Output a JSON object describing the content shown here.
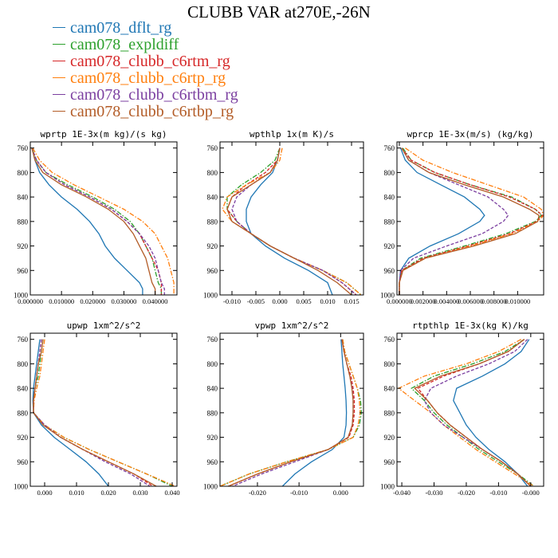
{
  "title": "CLUBB VAR at270E,-26N",
  "colors": {
    "series": [
      "#1f77b4",
      "#2ca02c",
      "#d62728",
      "#ff7f0e",
      "#7b3fa0",
      "#b35c27"
    ],
    "dash": [
      "solid",
      "dashdot",
      "dashed",
      "dashdot",
      "dashed",
      "solid"
    ]
  },
  "legend": [
    "cam078_dflt_rg",
    "cam078_expldiff",
    "cam078_clubb_c6rtm_rg",
    "cam078_clubb_c6rtp_rg",
    "cam078_clubb_c6rtbm_rg",
    "cam078_clubb_c6rtbp_rg"
  ],
  "chart_data": [
    {
      "type": "line",
      "title": "wprtp  1E-3x(m kg)/(s kg)",
      "ylim": [
        1000,
        750
      ],
      "xlim": [
        0.0,
        0.047
      ],
      "y_ticks": [
        "760",
        "800",
        "840",
        "880",
        "920",
        "960",
        "1000"
      ],
      "x_ticks": [
        "0.000000",
        "0.010000",
        "0.020000",
        "0.030000",
        "0.040000"
      ],
      "y": [
        760,
        780,
        800,
        820,
        840,
        860,
        880,
        900,
        920,
        940,
        960,
        980,
        990,
        1000
      ],
      "series": [
        {
          "values": [
            0.0005,
            0.0015,
            0.003,
            0.006,
            0.01,
            0.015,
            0.019,
            0.022,
            0.024,
            0.027,
            0.031,
            0.035,
            0.036,
            0.036
          ]
        },
        {
          "values": [
            0.0005,
            0.002,
            0.005,
            0.012,
            0.02,
            0.027,
            0.032,
            0.035,
            0.037,
            0.039,
            0.04,
            0.041,
            0.042,
            0.042
          ]
        },
        {
          "values": [
            0.0005,
            0.002,
            0.005,
            0.011,
            0.019,
            0.026,
            0.031,
            0.035,
            0.037,
            0.039,
            0.041,
            0.042,
            0.042,
            0.042
          ]
        },
        {
          "values": [
            0.0008,
            0.003,
            0.007,
            0.014,
            0.022,
            0.03,
            0.036,
            0.04,
            0.042,
            0.044,
            0.045,
            0.046,
            0.046,
            0.046
          ]
        },
        {
          "values": [
            0.0005,
            0.002,
            0.005,
            0.011,
            0.019,
            0.026,
            0.031,
            0.035,
            0.038,
            0.04,
            0.041,
            0.042,
            0.043,
            0.043
          ]
        },
        {
          "values": [
            0.0005,
            0.0015,
            0.004,
            0.01,
            0.018,
            0.025,
            0.03,
            0.033,
            0.035,
            0.037,
            0.038,
            0.039,
            0.04,
            0.04
          ]
        }
      ]
    },
    {
      "type": "line",
      "title": "wpthlp  1x(m K)/s",
      "ylim": [
        1000,
        750
      ],
      "xlim": [
        -0.0125,
        0.0175
      ],
      "y_ticks": [
        "760",
        "800",
        "840",
        "880",
        "920",
        "960",
        "1000"
      ],
      "x_ticks": [
        "-0.010",
        "-0.005",
        "0.000",
        "0.005",
        "0.010",
        "0.015"
      ],
      "y": [
        760,
        780,
        800,
        820,
        840,
        860,
        880,
        900,
        920,
        940,
        960,
        980,
        1000
      ],
      "series": [
        {
          "values": [
            0.0,
            -0.0005,
            -0.0015,
            -0.004,
            -0.006,
            -0.007,
            -0.007,
            -0.006,
            -0.003,
            0.001,
            0.006,
            0.01,
            0.011
          ]
        },
        {
          "values": [
            0.0,
            -0.001,
            -0.004,
            -0.008,
            -0.011,
            -0.011,
            -0.009,
            -0.006,
            -0.002,
            0.003,
            0.009,
            0.014,
            0.017
          ]
        },
        {
          "values": [
            0.0,
            -0.0005,
            -0.003,
            -0.007,
            -0.01,
            -0.011,
            -0.009,
            -0.006,
            -0.002,
            0.003,
            0.009,
            0.013,
            0.016
          ]
        },
        {
          "values": [
            0.0005,
            0.0,
            -0.002,
            -0.007,
            -0.011,
            -0.012,
            -0.01,
            -0.006,
            -0.002,
            0.003,
            0.009,
            0.014,
            0.017
          ]
        },
        {
          "values": [
            0.0,
            -0.0005,
            -0.002,
            -0.006,
            -0.009,
            -0.01,
            -0.009,
            -0.006,
            -0.002,
            0.003,
            0.009,
            0.013,
            0.016
          ]
        },
        {
          "values": [
            0.0,
            -0.0005,
            -0.002,
            -0.006,
            -0.01,
            -0.011,
            -0.01,
            -0.006,
            -0.002,
            0.003,
            0.008,
            0.012,
            0.015
          ]
        }
      ]
    },
    {
      "type": "line",
      "title": "wprcp  1E-3x(m/s) (kg/kg)",
      "ylim": [
        1000,
        750
      ],
      "xlim": [
        -0.0002,
        0.0122
      ],
      "y_ticks": [
        "760",
        "800",
        "840",
        "880",
        "920",
        "960",
        "1000"
      ],
      "x_ticks": [
        "0.000000",
        "0.002000",
        "0.004000",
        "0.006000",
        "0.008000",
        "0.010000"
      ],
      "y": [
        760,
        780,
        800,
        820,
        840,
        860,
        870,
        880,
        900,
        920,
        940,
        960,
        980,
        1000
      ],
      "series": [
        {
          "values": [
            0.0001,
            0.0005,
            0.0015,
            0.0035,
            0.0055,
            0.0068,
            0.0072,
            0.0068,
            0.005,
            0.0026,
            0.0008,
            0.0001,
            0.0,
            0.0
          ]
        },
        {
          "values": [
            0.0003,
            0.001,
            0.003,
            0.006,
            0.0095,
            0.0115,
            0.012,
            0.0115,
            0.009,
            0.0055,
            0.0018,
            0.0002,
            0.0,
            0.0
          ]
        },
        {
          "values": [
            0.0002,
            0.001,
            0.003,
            0.006,
            0.0093,
            0.0115,
            0.0121,
            0.0116,
            0.0093,
            0.0058,
            0.002,
            0.0002,
            0.0,
            0.0
          ]
        },
        {
          "values": [
            0.0005,
            0.002,
            0.0045,
            0.0075,
            0.0105,
            0.012,
            0.0122,
            0.0117,
            0.0095,
            0.006,
            0.0022,
            0.0003,
            0.0,
            0.0
          ]
        },
        {
          "values": [
            0.0002,
            0.0008,
            0.0025,
            0.005,
            0.0075,
            0.0088,
            0.0092,
            0.0088,
            0.007,
            0.004,
            0.0012,
            0.0001,
            0.0,
            0.0
          ]
        },
        {
          "values": [
            0.0002,
            0.0008,
            0.0025,
            0.0055,
            0.0088,
            0.011,
            0.0118,
            0.0117,
            0.0098,
            0.0063,
            0.0022,
            0.0003,
            0.0,
            0.0
          ]
        }
      ]
    },
    {
      "type": "line",
      "title": "upwp  1xm^2/s^2",
      "ylim": [
        1000,
        750
      ],
      "xlim": [
        -0.0045,
        0.0415
      ],
      "y_ticks": [
        "760",
        "800",
        "840",
        "880",
        "920",
        "960",
        "1000"
      ],
      "x_ticks": [
        "0.000",
        "0.010",
        "0.020",
        "0.030",
        "0.040"
      ],
      "y": [
        760,
        780,
        800,
        820,
        840,
        860,
        880,
        900,
        920,
        940,
        960,
        980,
        1000
      ],
      "series": [
        {
          "values": [
            -0.0015,
            -0.002,
            -0.0025,
            -0.003,
            -0.0035,
            -0.0037,
            -0.0035,
            -0.001,
            0.003,
            0.008,
            0.013,
            0.017,
            0.02
          ]
        },
        {
          "values": [
            -0.0005,
            -0.001,
            -0.0015,
            -0.002,
            -0.003,
            -0.0035,
            -0.0035,
            0.0,
            0.006,
            0.014,
            0.023,
            0.032,
            0.04
          ]
        },
        {
          "values": [
            -0.001,
            -0.0015,
            -0.002,
            -0.0025,
            -0.003,
            -0.0035,
            -0.0035,
            0.0,
            0.005,
            0.012,
            0.02,
            0.028,
            0.034
          ]
        },
        {
          "values": [
            0.0,
            -0.0005,
            -0.001,
            -0.0015,
            -0.0025,
            -0.0033,
            -0.0035,
            0.0,
            0.006,
            0.014,
            0.023,
            0.032,
            0.041
          ]
        },
        {
          "values": [
            -0.001,
            -0.0015,
            -0.002,
            -0.0025,
            -0.003,
            -0.0035,
            -0.0035,
            0.0,
            0.005,
            0.012,
            0.019,
            0.027,
            0.033
          ]
        },
        {
          "values": [
            -0.0005,
            -0.001,
            -0.002,
            -0.0025,
            -0.003,
            -0.0035,
            -0.0035,
            -0.0005,
            0.005,
            0.012,
            0.02,
            0.028,
            0.035
          ]
        }
      ]
    },
    {
      "type": "line",
      "title": "vpwp  1xm^2/s^2",
      "ylim": [
        1000,
        750
      ],
      "xlim": [
        -0.029,
        0.0055
      ],
      "y_ticks": [
        "760",
        "800",
        "840",
        "880",
        "920",
        "960",
        "1000"
      ],
      "x_ticks": [
        "-0.020",
        "-0.010",
        "0.000"
      ],
      "y": [
        760,
        780,
        800,
        820,
        840,
        860,
        880,
        900,
        920,
        940,
        960,
        980,
        1000
      ],
      "series": [
        {
          "values": [
            0.0001,
            0.0003,
            0.0005,
            0.0008,
            0.0011,
            0.0013,
            0.0014,
            0.0013,
            0.0008,
            -0.002,
            -0.007,
            -0.011,
            -0.014
          ]
        },
        {
          "values": [
            0.0005,
            0.001,
            0.002,
            0.003,
            0.004,
            0.0048,
            0.005,
            0.0045,
            0.003,
            -0.003,
            -0.013,
            -0.022,
            -0.029
          ]
        },
        {
          "values": [
            0.0003,
            0.0008,
            0.0015,
            0.0025,
            0.003,
            0.0033,
            0.0033,
            0.003,
            0.002,
            -0.003,
            -0.012,
            -0.02,
            -0.027
          ]
        },
        {
          "values": [
            0.0005,
            0.001,
            0.002,
            0.003,
            0.004,
            0.0045,
            0.0047,
            0.0042,
            0.003,
            -0.003,
            -0.013,
            -0.022,
            -0.029
          ]
        },
        {
          "values": [
            0.0003,
            0.0008,
            0.0015,
            0.0022,
            0.0028,
            0.003,
            0.003,
            0.0028,
            0.0018,
            -0.003,
            -0.011,
            -0.019,
            -0.026
          ]
        },
        {
          "values": [
            0.0003,
            0.0008,
            0.0015,
            0.0022,
            0.0027,
            0.003,
            0.003,
            0.0028,
            0.0018,
            -0.003,
            -0.012,
            -0.02,
            -0.027
          ]
        }
      ]
    },
    {
      "type": "line",
      "title": "rtpthlp  1E-3x(kg K)/kg",
      "ylim": [
        1000,
        750
      ],
      "xlim": [
        -0.0415,
        0.004
      ],
      "y_ticks": [
        "760",
        "800",
        "840",
        "880",
        "920",
        "960",
        "1000"
      ],
      "x_ticks": [
        "-0.040",
        "-0.030",
        "-0.020",
        "-0.010",
        "-0.000"
      ],
      "y": [
        760,
        780,
        800,
        820,
        840,
        860,
        880,
        900,
        920,
        940,
        960,
        980,
        1000
      ],
      "series": [
        {
          "values": [
            -0.0005,
            -0.003,
            -0.008,
            -0.015,
            -0.023,
            -0.024,
            -0.022,
            -0.02,
            -0.017,
            -0.013,
            -0.008,
            -0.004,
            -0.001
          ]
        },
        {
          "values": [
            -0.002,
            -0.008,
            -0.018,
            -0.03,
            -0.037,
            -0.033,
            -0.03,
            -0.026,
            -0.021,
            -0.016,
            -0.01,
            -0.004,
            0.001
          ]
        },
        {
          "values": [
            -0.002,
            -0.007,
            -0.016,
            -0.027,
            -0.035,
            -0.032,
            -0.029,
            -0.025,
            -0.02,
            -0.015,
            -0.009,
            -0.004,
            0.0
          ]
        },
        {
          "values": [
            -0.003,
            -0.01,
            -0.02,
            -0.033,
            -0.041,
            -0.036,
            -0.031,
            -0.027,
            -0.022,
            -0.017,
            -0.011,
            -0.005,
            0.001
          ]
        },
        {
          "values": [
            -0.001,
            -0.005,
            -0.013,
            -0.023,
            -0.031,
            -0.033,
            -0.031,
            -0.027,
            -0.021,
            -0.015,
            -0.009,
            -0.004,
            0.0
          ]
        },
        {
          "values": [
            -0.002,
            -0.007,
            -0.016,
            -0.028,
            -0.036,
            -0.032,
            -0.029,
            -0.025,
            -0.02,
            -0.015,
            -0.009,
            -0.004,
            0.0
          ]
        }
      ]
    }
  ]
}
